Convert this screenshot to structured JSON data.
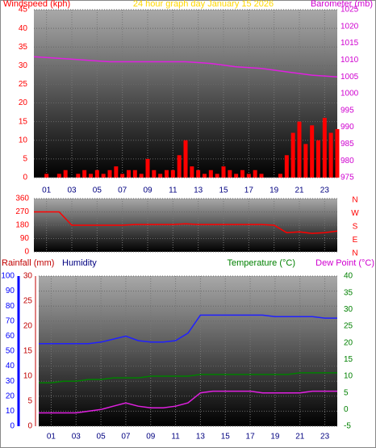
{
  "chart_data": [
    {
      "type": "bar-line",
      "title": "24 hour graph day   January 15 2026",
      "ylabel": "Windspeed (kph)",
      "y2label": "Barometer (mb)",
      "xlim": [
        0,
        24
      ],
      "xticks": [
        {
          "value": 1,
          "label": "01"
        },
        {
          "value": 3,
          "label": "03"
        },
        {
          "value": 5,
          "label": "05"
        },
        {
          "value": 7,
          "label": "07"
        },
        {
          "value": 9,
          "label": "09"
        },
        {
          "value": 11,
          "label": "11"
        },
        {
          "value": 13,
          "label": "13"
        },
        {
          "value": 15,
          "label": "15"
        },
        {
          "value": 17,
          "label": "17"
        },
        {
          "value": 19,
          "label": "19"
        },
        {
          "value": 21,
          "label": "21"
        },
        {
          "value": 23,
          "label": "23"
        }
      ],
      "ylim": [
        0,
        45
      ],
      "yticks": [
        0,
        5,
        10,
        15,
        20,
        25,
        30,
        35,
        40,
        45
      ],
      "y2lim": [
        975,
        1025
      ],
      "y2ticks": [
        975,
        980,
        985,
        990,
        995,
        1000,
        1005,
        1010,
        1015,
        1020,
        1025
      ],
      "grid": true,
      "series": [
        {
          "kind": "bar",
          "color": "#ff0000",
          "axis": "y",
          "x": [
            0,
            0.5,
            1,
            1.5,
            2,
            2.5,
            3,
            3.5,
            4,
            4.5,
            5,
            5.5,
            6,
            6.5,
            7,
            7.5,
            8,
            8.5,
            9,
            9.5,
            10,
            10.5,
            11,
            11.5,
            12,
            12.5,
            13,
            13.5,
            14,
            14.5,
            15,
            15.5,
            16,
            16.5,
            17,
            17.5,
            18,
            18.5,
            19,
            19.5,
            20,
            20.5,
            21,
            21.5,
            22,
            22.5,
            23,
            23.5,
            24
          ],
          "values": [
            0,
            0,
            1,
            0,
            1,
            2,
            0,
            1,
            2,
            1,
            2,
            1,
            2,
            3,
            1,
            2,
            2,
            1,
            5,
            2,
            1,
            2,
            2,
            6,
            10,
            3,
            2,
            1,
            2,
            1,
            3,
            2,
            1,
            2,
            1,
            2,
            1,
            0,
            0,
            1,
            6,
            12,
            15,
            9,
            14,
            10,
            16,
            12,
            13
          ]
        },
        {
          "kind": "line",
          "color": "#e020e0",
          "axis": "y2",
          "x": [
            0,
            2,
            4,
            6,
            8,
            10,
            12,
            14,
            16,
            18,
            20,
            22,
            24
          ],
          "values": [
            1011,
            1010.5,
            1010,
            1009.5,
            1009.5,
            1009.5,
            1009.5,
            1009,
            1008,
            1007.5,
            1006.5,
            1005.5,
            1005
          ]
        }
      ]
    },
    {
      "type": "line",
      "xlim": [
        0,
        24
      ],
      "ylim": [
        0,
        360
      ],
      "yticks": [
        0,
        90,
        180,
        270,
        360
      ],
      "compass": [
        "N",
        "W",
        "S",
        "E",
        "N"
      ],
      "grid": true,
      "series": [
        {
          "kind": "line",
          "color": "#ff0000",
          "axis": "y",
          "x": [
            0,
            1,
            2,
            3,
            4,
            5,
            6,
            7,
            8,
            9,
            10,
            11,
            12,
            13,
            14,
            15,
            16,
            17,
            18,
            19,
            20,
            21,
            22,
            23,
            24
          ],
          "values": [
            270,
            270,
            270,
            180,
            180,
            180,
            180,
            180,
            185,
            185,
            185,
            185,
            190,
            185,
            185,
            185,
            185,
            185,
            185,
            180,
            130,
            135,
            125,
            130,
            140
          ]
        }
      ]
    },
    {
      "type": "line",
      "ylabel": "Humidity",
      "y3label": "Rainfall (mm)",
      "y2label": "Temperature (°C)",
      "y2label_b": "Dew Point (°C)",
      "xlim": [
        0,
        24
      ],
      "xticks": [
        {
          "value": 1,
          "label": "01"
        },
        {
          "value": 3,
          "label": "03"
        },
        {
          "value": 5,
          "label": "05"
        },
        {
          "value": 7,
          "label": "07"
        },
        {
          "value": 9,
          "label": "09"
        },
        {
          "value": 11,
          "label": "11"
        },
        {
          "value": 13,
          "label": "13"
        },
        {
          "value": 15,
          "label": "15"
        },
        {
          "value": 17,
          "label": "17"
        },
        {
          "value": 19,
          "label": "19"
        },
        {
          "value": 21,
          "label": "21"
        },
        {
          "value": 23,
          "label": "23"
        }
      ],
      "ylim": [
        0,
        100
      ],
      "yticks": [
        0,
        10,
        20,
        30,
        40,
        50,
        60,
        70,
        80,
        90,
        100
      ],
      "y3lim": [
        0,
        30
      ],
      "y3ticks": [
        0,
        5,
        10,
        15,
        20,
        25,
        30
      ],
      "y2lim": [
        -5,
        40
      ],
      "y2ticks": [
        -5,
        0,
        5,
        10,
        15,
        20,
        25,
        30,
        35,
        40
      ],
      "grid": true,
      "series": [
        {
          "kind": "line",
          "color": "#2020ff",
          "axis": "y",
          "x": [
            0,
            1,
            2,
            3,
            4,
            5,
            6,
            7,
            8,
            9,
            10,
            11,
            12,
            13,
            14,
            15,
            16,
            17,
            18,
            19,
            20,
            21,
            22,
            23,
            24
          ],
          "values": [
            55,
            55,
            55,
            55,
            55,
            56,
            58,
            60,
            57,
            56,
            56,
            57,
            62,
            74,
            74,
            74,
            74,
            74,
            74,
            73,
            73,
            73,
            73,
            72,
            72
          ]
        },
        {
          "kind": "line",
          "color": "#008000",
          "axis": "y2",
          "x": [
            0,
            1,
            2,
            3,
            4,
            5,
            6,
            7,
            8,
            9,
            10,
            11,
            12,
            13,
            14,
            15,
            16,
            17,
            18,
            19,
            20,
            21,
            22,
            23,
            24
          ],
          "values": [
            8,
            8,
            8.5,
            8.5,
            9,
            9,
            9.5,
            9.5,
            9.5,
            10,
            10,
            10,
            10,
            10.5,
            10.5,
            10.5,
            10.5,
            10.5,
            10.5,
            10.5,
            10.5,
            11,
            11,
            11,
            11
          ]
        },
        {
          "kind": "line",
          "color": "#e020e0",
          "axis": "y2",
          "x": [
            0,
            1,
            2,
            3,
            4,
            5,
            6,
            7,
            8,
            9,
            10,
            11,
            12,
            13,
            14,
            15,
            16,
            17,
            18,
            19,
            20,
            21,
            22,
            23,
            24
          ],
          "values": [
            -1,
            -1,
            -1,
            -1,
            -0.5,
            0,
            1,
            2,
            1,
            0.5,
            0.5,
            1,
            2,
            5,
            5.5,
            5.5,
            5.5,
            5.5,
            5,
            5,
            5,
            5,
            5.5,
            5.5,
            5.5
          ]
        }
      ]
    }
  ]
}
